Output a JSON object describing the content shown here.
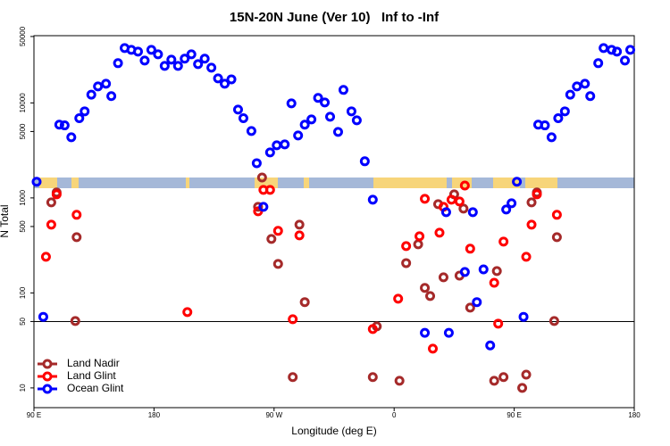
{
  "chart_data": {
    "type": "scatter",
    "title": "15N-20N June (Ver 10)   Inf to -Inf",
    "x_label": "Longitude (deg E)",
    "y_label": "N Total",
    "log_y": true,
    "xlim": [
      90,
      540
    ],
    "xticks": [
      {
        "value": 90,
        "label": "90 E"
      },
      180,
      {
        "value": 270,
        "label": "90 W"
      },
      {
        "value": 360,
        "label": "0"
      },
      {
        "value": 450,
        "label": "90 E"
      },
      {
        "value": 540,
        "label": "180"
      }
    ],
    "ylim": [
      6.2,
      51000
    ],
    "yticks": [
      10,
      50,
      100,
      500,
      1000,
      5000,
      10000,
      50000
    ],
    "reference_line": 50,
    "legend": "bottom-left",
    "series": [
      {
        "name": "Land Nadir",
        "color": "#a52a2a",
        "x": [
          107,
          103,
          122,
          121,
          258,
          261,
          268,
          273,
          284,
          289,
          293,
          347,
          344,
          364,
          369,
          378,
          383,
          387,
          393,
          397,
          405,
          409,
          412,
          417,
          435,
          437,
          442,
          456,
          459,
          463,
          467,
          480,
          482
        ],
        "y": [
          1140,
          898,
          386,
          50.6,
          805,
          1640,
          370,
          202,
          13,
          523,
          80,
          44.5,
          13,
          11.9,
          206,
          325,
          113,
          92.7,
          860,
          146,
          1090,
          152,
          771,
          70,
          11.9,
          170,
          13,
          10,
          13.8,
          898,
          1140,
          50.6,
          386
        ]
      },
      {
        "name": "Land Glint",
        "color": "#ff0000",
        "x": [
          99,
          103,
          107,
          122,
          205,
          258,
          262,
          267,
          273,
          284,
          289,
          344,
          363,
          369,
          379,
          383,
          389,
          394,
          397,
          403,
          409,
          413,
          417,
          435,
          438,
          442,
          459,
          463,
          467,
          482
        ],
        "y": [
          240,
          523,
          1090,
          664,
          62.8,
          723,
          1215,
          1215,
          450,
          52.8,
          403,
          41.7,
          86.9,
          311,
          395,
          979,
          25.9,
          430,
          805,
          958,
          917,
          1350,
          292,
          128,
          47.5,
          347,
          240,
          523,
          1090,
          664
        ]
      },
      {
        "name": "Ocean Glint",
        "color": "#0000ff",
        "x": [
          92,
          97,
          109,
          113,
          118,
          124,
          128,
          133,
          138,
          144,
          148,
          153,
          158,
          163,
          168,
          173,
          178,
          183,
          188,
          193,
          198,
          203,
          208,
          213,
          218,
          223,
          228,
          233,
          238,
          243,
          247,
          253,
          257,
          262,
          267,
          272,
          278,
          283,
          288,
          293,
          298,
          303,
          308,
          312,
          318,
          322,
          328,
          332,
          338,
          344,
          383,
          399,
          401,
          413,
          419,
          422,
          427,
          432,
          444,
          448,
          452,
          457,
          468,
          473,
          478,
          483,
          488,
          492,
          497,
          503,
          507,
          513,
          517,
          523,
          527,
          533,
          537
        ],
        "y": [
          1480,
          56,
          5900,
          5800,
          4350,
          6900,
          8150,
          12200,
          14900,
          15900,
          11800,
          26200,
          37800,
          36200,
          34700,
          27900,
          36200,
          32500,
          24500,
          28500,
          24500,
          29200,
          32500,
          25600,
          29200,
          23500,
          18100,
          15900,
          17700,
          8500,
          6900,
          5060,
          2320,
          805,
          3010,
          3580,
          3660,
          9890,
          4540,
          5900,
          6700,
          11300,
          10100,
          7150,
          4950,
          13700,
          8150,
          6560,
          2430,
          958,
          38,
          708,
          38,
          166,
          708,
          80,
          177,
          28,
          755,
          879,
          1480,
          56,
          5900,
          5800,
          4350,
          6900,
          8150,
          12200,
          14900,
          15900,
          11800,
          26200,
          37800,
          36200,
          34700,
          27900,
          36200
        ]
      }
    ]
  }
}
